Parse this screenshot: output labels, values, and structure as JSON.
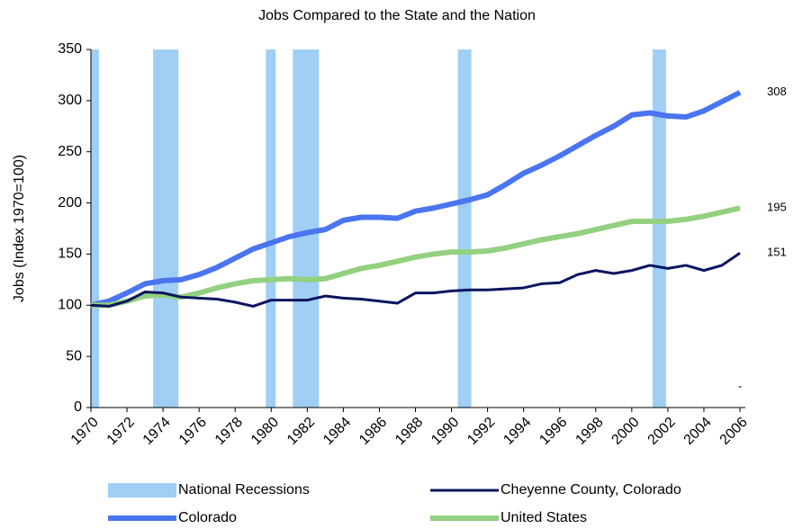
{
  "chart_data": {
    "type": "line",
    "title": "Jobs Compared to the State and the Nation",
    "y_label": "Jobs (Index 1970=100)",
    "x": [
      1970,
      1971,
      1972,
      1973,
      1974,
      1975,
      1976,
      1977,
      1978,
      1979,
      1980,
      1981,
      1982,
      1983,
      1984,
      1985,
      1986,
      1987,
      1988,
      1989,
      1990,
      1991,
      1992,
      1993,
      1994,
      1995,
      1996,
      1997,
      1998,
      1999,
      2000,
      2001,
      2002,
      2003,
      2004,
      2005,
      2006
    ],
    "xlim": [
      1970,
      2006.3
    ],
    "xticks": [
      1970,
      1972,
      1974,
      1976,
      1978,
      1980,
      1982,
      1984,
      1986,
      1988,
      1990,
      1992,
      1994,
      1996,
      1998,
      2000,
      2002,
      2004,
      2006
    ],
    "ylim": [
      0,
      350
    ],
    "yticks": [
      0,
      50,
      100,
      150,
      200,
      250,
      300,
      350
    ],
    "recessions": {
      "name": "National Recessions",
      "color": "#9fcff5",
      "ranges": [
        [
          1970,
          1970.45
        ],
        [
          1973.45,
          1974.85
        ],
        [
          1979.7,
          1980.25
        ],
        [
          1981.2,
          1982.65
        ],
        [
          1990.35,
          1991.1
        ],
        [
          2001.15,
          2001.9
        ]
      ]
    },
    "series": [
      {
        "name": "Colorado",
        "color": "#4a74f0",
        "width": 6,
        "values": [
          100,
          104,
          112,
          121,
          124,
          125,
          130,
          137,
          146,
          155,
          161,
          167,
          171,
          174,
          183,
          186,
          186,
          185,
          192,
          195,
          199,
          203,
          208,
          218,
          229,
          237,
          246,
          256,
          266,
          275,
          286,
          288,
          285,
          284,
          290,
          299,
          308
        ]
      },
      {
        "name": "United States",
        "color": "#93d07f",
        "width": 6,
        "values": [
          100,
          100,
          104,
          109,
          110,
          108,
          112,
          117,
          121,
          124,
          125,
          126,
          125,
          126,
          131,
          136,
          139,
          143,
          147,
          150,
          152,
          152,
          153,
          156,
          160,
          164,
          167,
          170,
          174,
          178,
          182,
          182,
          182,
          184,
          187,
          191,
          195
        ]
      },
      {
        "name": "Cheyenne County, Colorado",
        "color": "#0b1560",
        "width": 3,
        "values": [
          100,
          99,
          104,
          113,
          112,
          108,
          107,
          106,
          103,
          99,
          105,
          105,
          105,
          109,
          107,
          106,
          104,
          102,
          112,
          112,
          114,
          115,
          115,
          116,
          117,
          121,
          122,
          130,
          134,
          131,
          134,
          139,
          136,
          139,
          134,
          139,
          151
        ]
      }
    ],
    "annotation": "-"
  }
}
